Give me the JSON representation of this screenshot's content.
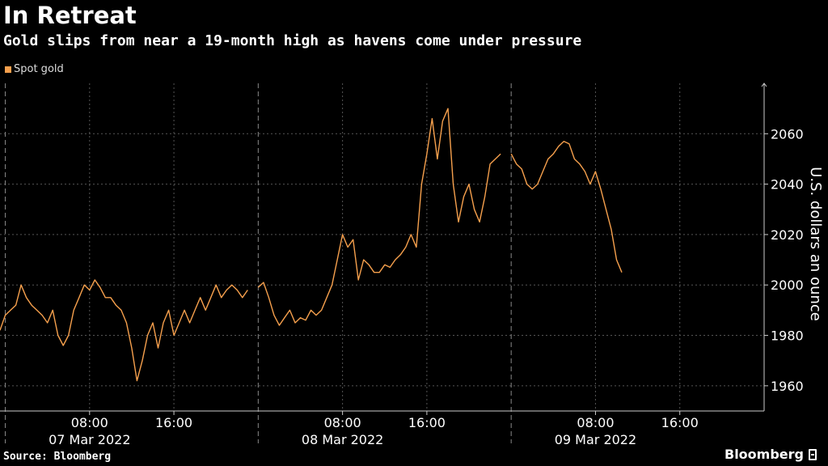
{
  "title": "In Retreat",
  "subtitle": "Gold slips from near a 19-month high as havens come under pressure",
  "source": "Source: Bloomberg",
  "brand": "Bloomberg",
  "chart_data": {
    "type": "line",
    "legend_position": "top-left",
    "grid": true,
    "ylabel": "U.S. dollars an ounce",
    "ylim": [
      1950,
      2080
    ],
    "yticks": [
      1960,
      1980,
      2000,
      2020,
      2040,
      2060
    ],
    "xticks": [
      {
        "time": "08:00",
        "day": "07 Mar 2022",
        "hour": 8
      },
      {
        "time": "16:00",
        "day": "",
        "hour": 16
      },
      {
        "time": "08:00",
        "day": "08 Mar 2022",
        "hour": 32
      },
      {
        "time": "16:00",
        "day": "",
        "hour": 40
      },
      {
        "time": "08:00",
        "day": "09 Mar 2022",
        "hour": 56
      },
      {
        "time": "16:00",
        "day": "",
        "hour": 64
      }
    ],
    "day_separators_hours": [
      0,
      24,
      48
    ],
    "x_unit": "hours since 07 Mar 2022 00:00",
    "xlim": [
      -0.5,
      72
    ],
    "series": [
      {
        "name": "Spot gold",
        "color": "#f6a04d",
        "segments": [
          {
            "x": [
              -0.5,
              0.0,
              0.5,
              1.0,
              1.5,
              2.0,
              2.5,
              3.0,
              3.5,
              4.0,
              4.5,
              5.0,
              5.5,
              6.0,
              6.5,
              7.0,
              7.5,
              8.0,
              8.5,
              9.0,
              9.5,
              10.0,
              10.5,
              11.0,
              11.5,
              12.0,
              12.5,
              13.0,
              13.5,
              14.0,
              14.5,
              15.0,
              15.5,
              16.0,
              16.5,
              17.0,
              17.5,
              18.0,
              18.5,
              19.0,
              19.5,
              20.0,
              20.5,
              21.0,
              21.5,
              22.0,
              22.5,
              23.0
            ],
            "y": [
              1982,
              1988,
              1990,
              1992,
              2000,
              1995,
              1992,
              1990,
              1988,
              1985,
              1990,
              1980,
              1976,
              1980,
              1990,
              1995,
              2000,
              1998,
              2002,
              1999,
              1995,
              1995,
              1992,
              1990,
              1985,
              1975,
              1962,
              1970,
              1980,
              1985,
              1975,
              1985,
              1990,
              1980,
              1985,
              1990,
              1985,
              1990,
              1995,
              1990,
              1995,
              2000,
              1995,
              1998,
              2000,
              1998,
              1995,
              1998
            ]
          },
          {
            "x": [
              24.0,
              24.5,
              25.0,
              25.5,
              26.0,
              26.5,
              27.0,
              27.5,
              28.0,
              28.5,
              29.0,
              29.5,
              30.0,
              30.5,
              31.0,
              31.5,
              32.0,
              32.5,
              33.0,
              33.5,
              34.0,
              34.5,
              35.0,
              35.5,
              36.0,
              36.5,
              37.0,
              37.5,
              38.0,
              38.5,
              39.0,
              39.5,
              40.0,
              40.5,
              41.0,
              41.5,
              42.0,
              42.5,
              43.0,
              43.5,
              44.0,
              44.5,
              45.0,
              45.5,
              46.0,
              46.5,
              47.0
            ],
            "y": [
              1999,
              2001,
              1995,
              1988,
              1984,
              1987,
              1990,
              1985,
              1987,
              1986,
              1990,
              1988,
              1990,
              1995,
              2000,
              2010,
              2020,
              2015,
              2018,
              2002,
              2010,
              2008,
              2005,
              2005,
              2008,
              2007,
              2010,
              2012,
              2015,
              2020,
              2015,
              2040,
              2052,
              2066,
              2050,
              2065,
              2070,
              2040,
              2025,
              2035,
              2040,
              2030,
              2025,
              2035,
              2048,
              2050,
              2052
            ]
          },
          {
            "x": [
              48.0,
              48.5,
              49.0,
              49.5,
              50.0,
              50.5,
              51.0,
              51.5,
              52.0,
              52.5,
              53.0,
              53.5,
              54.0,
              54.5,
              55.0,
              55.5,
              56.0,
              56.5,
              57.0,
              57.5,
              58.0,
              58.5
            ],
            "y": [
              2052,
              2048,
              2046,
              2040,
              2038,
              2040,
              2045,
              2050,
              2052,
              2055,
              2057,
              2056,
              2050,
              2048,
              2045,
              2040,
              2045,
              2038,
              2030,
              2022,
              2010,
              2005
            ]
          }
        ]
      }
    ]
  }
}
